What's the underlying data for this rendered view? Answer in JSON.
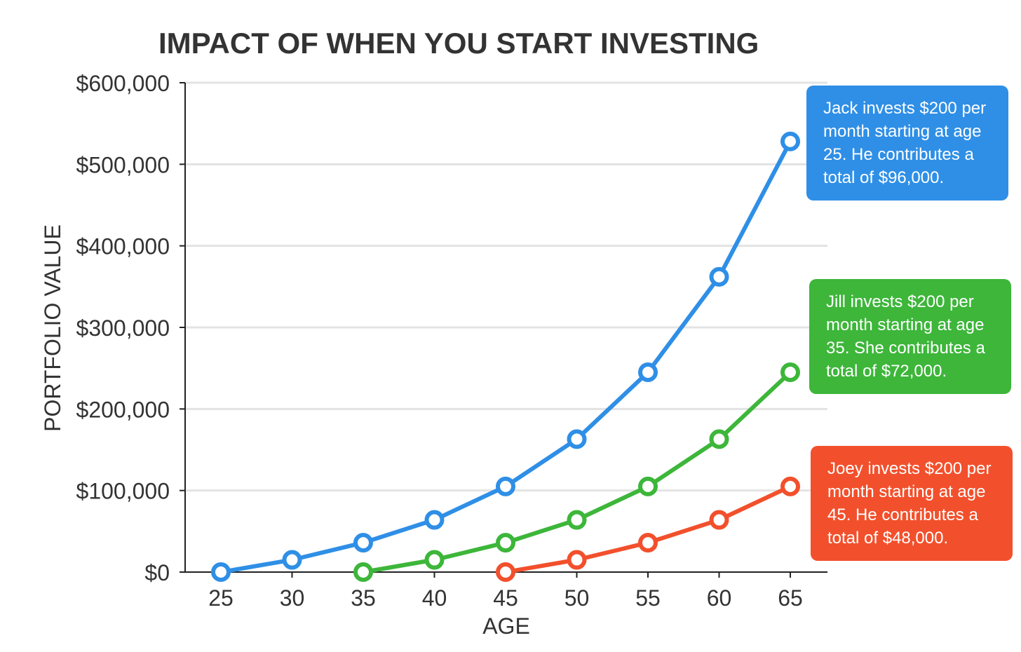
{
  "chart_data": {
    "type": "line",
    "title": "IMPACT OF WHEN YOU START INVESTING",
    "xlabel": "AGE",
    "ylabel": "PORTFOLIO VALUE",
    "x": [
      25,
      30,
      35,
      40,
      45,
      50,
      55,
      60,
      65
    ],
    "y_ticks": [
      "$0",
      "$100,000",
      "$200,000",
      "$300,000",
      "$400,000",
      "$500,000",
      "$600,000"
    ],
    "ylim": [
      0,
      600000
    ],
    "grid": true,
    "series": [
      {
        "name": "Jack",
        "color": "#2f8fe6",
        "x": [
          25,
          30,
          35,
          40,
          45,
          50,
          55,
          60,
          65
        ],
        "values": [
          0,
          15000,
          36000,
          64000,
          105000,
          163000,
          245000,
          362000,
          528000
        ]
      },
      {
        "name": "Jill",
        "color": "#3db63a",
        "x": [
          35,
          40,
          45,
          50,
          55,
          60,
          65
        ],
        "values": [
          0,
          15000,
          36000,
          64000,
          105000,
          163000,
          245000
        ]
      },
      {
        "name": "Joey",
        "color": "#f2502c",
        "x": [
          45,
          50,
          55,
          60,
          65
        ],
        "values": [
          0,
          15000,
          36000,
          64000,
          105000
        ]
      }
    ],
    "annotations": [
      {
        "text": "Jack invests $200 per month starting at age 25. He contributes a total of $96,000.",
        "color": "#2f8fe6"
      },
      {
        "text": "Jill invests $200 per month starting at age 35. She contributes a total of $72,000.",
        "color": "#3db63a"
      },
      {
        "text": "Joey invests $200 per month starting at age 45. He contributes a total of $48,000.",
        "color": "#f2502c"
      }
    ]
  }
}
